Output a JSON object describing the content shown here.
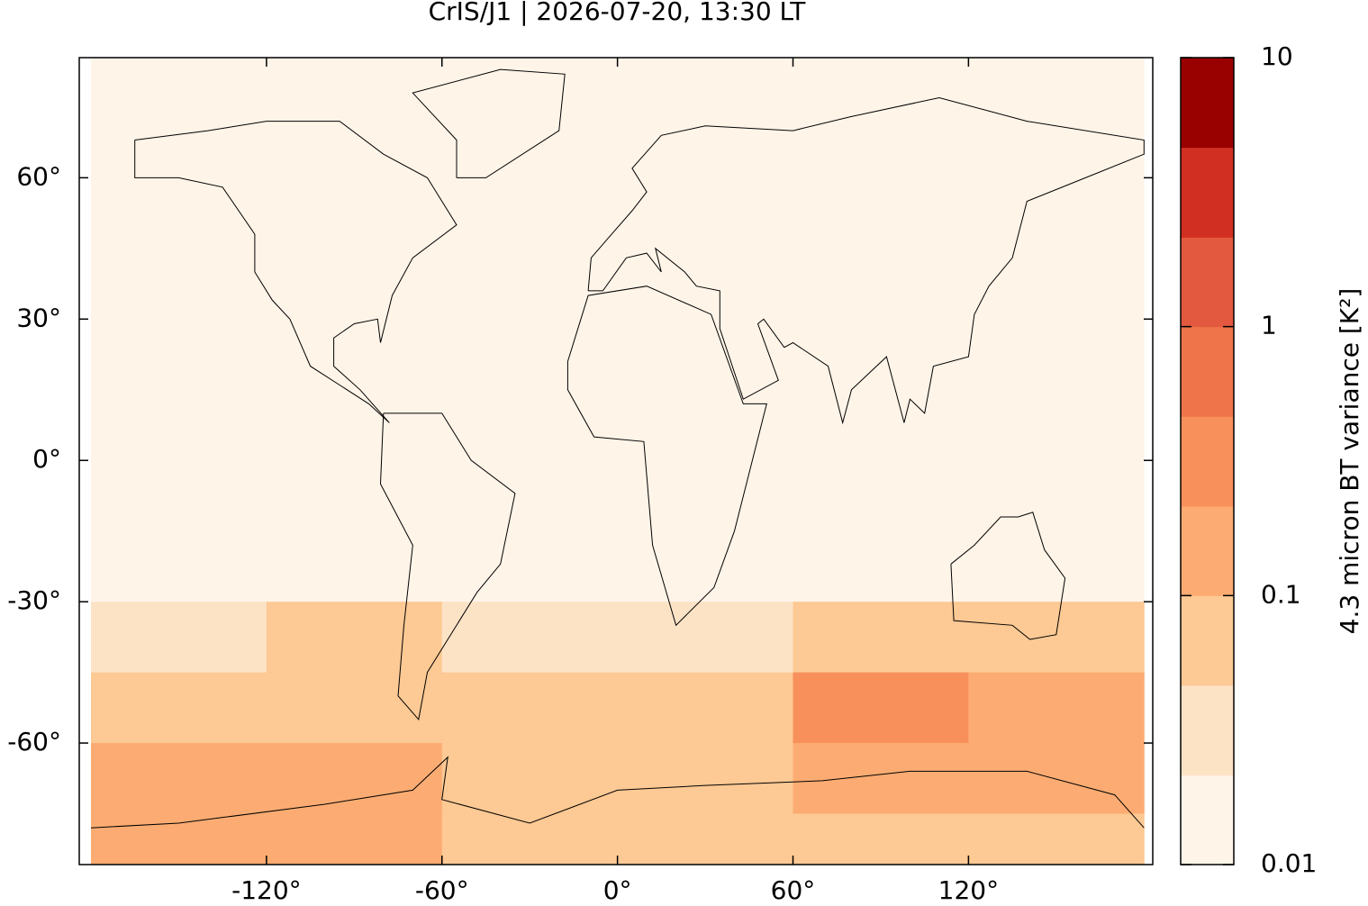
{
  "chart_data": {
    "type": "map",
    "title": "CrIS/J1 | 2026-07-20, 13:30 LT",
    "xlim": [
      -184,
      183
    ],
    "ylim": [
      -85.8,
      85.5
    ],
    "xticks": [
      {
        "value": -120,
        "label": "-120°"
      },
      {
        "value": -60,
        "label": "-60°"
      },
      {
        "value": 0,
        "label": "0°"
      },
      {
        "value": 60,
        "label": "60°"
      },
      {
        "value": 120,
        "label": "120°"
      }
    ],
    "yticks": [
      {
        "value": 60,
        "label": "60°"
      },
      {
        "value": 30,
        "label": "30°"
      },
      {
        "value": 0,
        "label": "0°"
      },
      {
        "value": -30,
        "label": "-30°"
      },
      {
        "value": -60,
        "label": "-60°"
      }
    ],
    "field": {
      "lon_edges": [
        -180,
        -120,
        -60,
        0,
        60,
        120,
        180
      ],
      "lat_edges": [
        90,
        -30,
        -45,
        -60,
        -75,
        -90
      ],
      "values": [
        [
          0.015,
          0.015,
          0.015,
          0.015,
          0.015,
          0.015
        ],
        [
          0.03,
          0.05,
          0.04,
          0.04,
          0.08,
          0.06
        ],
        [
          0.06,
          0.05,
          0.05,
          0.08,
          0.25,
          0.2
        ],
        [
          0.12,
          0.15,
          0.06,
          0.06,
          0.1,
          0.1
        ],
        [
          0.1,
          0.12,
          0.08,
          0.05,
          0.05,
          0.05
        ]
      ]
    },
    "colorbar": {
      "label": "4.3 micron BT variance [K²]",
      "log_scale": true,
      "lim": [
        0.01,
        10
      ],
      "ticks": [
        0.01,
        0.1,
        1,
        10
      ],
      "levels": [
        0.01,
        0.0215,
        0.0464,
        0.1,
        0.215,
        0.464,
        1,
        2.15,
        4.64,
        10
      ],
      "colors": [
        "#fff4e8",
        "#fde3c6",
        "#fdc994",
        "#fcac72",
        "#f8905c",
        "#ef744a",
        "#e3593f",
        "#d12f21",
        "#990000"
      ]
    }
  }
}
